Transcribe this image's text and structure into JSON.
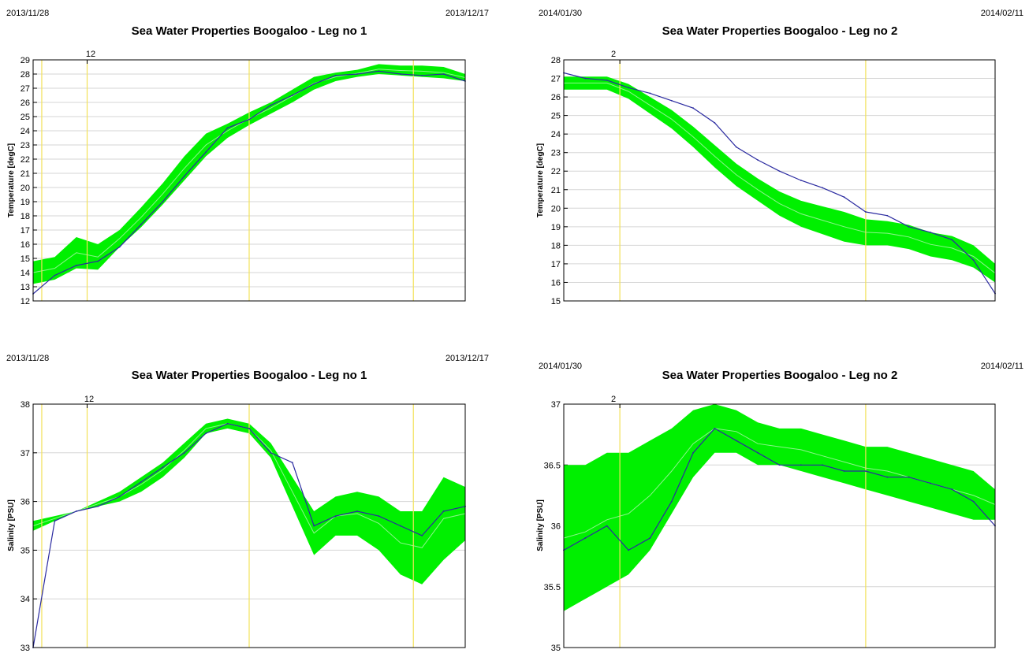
{
  "colors": {
    "band": "#00f000",
    "band_mid": "#8cf58c",
    "line": "#2a2aa0",
    "marker": "#f2e25a",
    "grid": "#d6d6d6",
    "axis": "#000000"
  },
  "chart_data": [
    {
      "type": "area",
      "title": "Sea Water Properties Boogaloo - Leg no 1",
      "ylabel": "Temperature [degC]",
      "date_start": "2013/11/28",
      "date_end": "2013/12/17",
      "top_tick_label": "12",
      "ylim": [
        12,
        29
      ],
      "yticks": [
        12,
        13,
        14,
        15,
        16,
        17,
        18,
        19,
        20,
        21,
        22,
        23,
        24,
        25,
        26,
        27,
        28,
        29
      ],
      "x": [
        0.0,
        0.05,
        0.1,
        0.15,
        0.2,
        0.25,
        0.3,
        0.35,
        0.4,
        0.45,
        0.5,
        0.55,
        0.6,
        0.65,
        0.7,
        0.75,
        0.8,
        0.85,
        0.9,
        0.95,
        1.0
      ],
      "series": [
        {
          "values": [
            12.5,
            13.8,
            14.5,
            14.8,
            15.8,
            17.4,
            19.0,
            20.8,
            22.5,
            24.2,
            24.8,
            25.8,
            26.5,
            27.3,
            27.9,
            28.0,
            28.2,
            28.0,
            27.9,
            28.0,
            27.5
          ]
        }
      ],
      "band": {
        "lower": [
          13.2,
          13.5,
          14.3,
          14.2,
          15.8,
          17.2,
          18.8,
          20.5,
          22.2,
          23.5,
          24.4,
          25.2,
          26.0,
          26.9,
          27.5,
          27.8,
          28.0,
          27.9,
          27.8,
          27.7,
          27.5
        ],
        "upper": [
          14.8,
          15.1,
          16.5,
          16.0,
          17.0,
          18.6,
          20.3,
          22.2,
          23.8,
          24.5,
          25.3,
          26.0,
          26.9,
          27.8,
          28.1,
          28.3,
          28.7,
          28.6,
          28.6,
          28.5,
          28.0
        ]
      },
      "markers": [
        0.02,
        0.125,
        0.5,
        0.88
      ]
    },
    {
      "type": "area",
      "title": "Sea Water Properties Boogaloo - Leg no 2",
      "ylabel": "Temperature [degC]",
      "date_start": "2014/01/30",
      "date_end": "2014/02/11",
      "top_tick_label": "2",
      "ylim": [
        15,
        28
      ],
      "yticks": [
        15,
        16,
        17,
        18,
        19,
        20,
        21,
        22,
        23,
        24,
        25,
        26,
        27,
        28
      ],
      "x": [
        0.0,
        0.05,
        0.1,
        0.15,
        0.2,
        0.25,
        0.3,
        0.35,
        0.4,
        0.45,
        0.5,
        0.55,
        0.6,
        0.65,
        0.7,
        0.75,
        0.8,
        0.85,
        0.9,
        0.95,
        1.0
      ],
      "series": [
        {
          "values": [
            27.3,
            27.0,
            26.9,
            26.5,
            26.2,
            25.8,
            25.4,
            24.6,
            23.3,
            22.6,
            22.0,
            21.5,
            21.1,
            20.6,
            19.8,
            19.6,
            19.0,
            18.7,
            18.3,
            17.2,
            15.4
          ]
        }
      ],
      "band": {
        "lower": [
          26.4,
          26.4,
          26.4,
          25.9,
          25.1,
          24.3,
          23.3,
          22.2,
          21.2,
          20.4,
          19.6,
          19.0,
          18.6,
          18.2,
          18.0,
          18.0,
          17.8,
          17.4,
          17.2,
          16.8,
          16.0
        ]
      },
      "band_upper": [
        27.1,
        27.1,
        27.1,
        26.7,
        26.0,
        25.3,
        24.4,
        23.4,
        22.4,
        21.6,
        20.9,
        20.4,
        20.1,
        19.8,
        19.4,
        19.3,
        19.1,
        18.7,
        18.5,
        18.0,
        17.0
      ],
      "markers": [
        0.13,
        0.7
      ]
    },
    {
      "type": "area",
      "title": "Sea Water Properties Boogaloo - Leg no 1",
      "ylabel": "Salinity [PSU]",
      "date_start": "2013/11/28",
      "date_end": "2013/12/17",
      "top_tick_label": "12",
      "ylim": [
        33,
        38
      ],
      "yticks": [
        33,
        34,
        35,
        36,
        37,
        38
      ],
      "x": [
        0.0,
        0.05,
        0.1,
        0.15,
        0.2,
        0.25,
        0.3,
        0.35,
        0.4,
        0.45,
        0.5,
        0.55,
        0.6,
        0.65,
        0.7,
        0.75,
        0.8,
        0.85,
        0.9,
        0.95,
        1.0
      ],
      "series": [
        {
          "values": [
            33.0,
            35.6,
            35.8,
            35.9,
            36.1,
            36.4,
            36.7,
            37.0,
            37.4,
            37.6,
            37.5,
            37.0,
            36.8,
            35.5,
            35.7,
            35.8,
            35.7,
            35.5,
            35.3,
            35.8,
            35.9
          ]
        }
      ],
      "band": {
        "lower": [
          35.4,
          35.6,
          35.8,
          35.9,
          36.0,
          36.2,
          36.5,
          36.9,
          37.4,
          37.5,
          37.4,
          36.9,
          35.9,
          34.9,
          35.3,
          35.3,
          35.0,
          34.5,
          34.3,
          34.8,
          35.2
        ]
      },
      "band_upper": [
        35.6,
        35.7,
        35.8,
        36.0,
        36.2,
        36.5,
        36.8,
        37.2,
        37.6,
        37.7,
        37.6,
        37.2,
        36.5,
        35.8,
        36.1,
        36.2,
        36.1,
        35.8,
        35.8,
        36.5,
        36.3
      ],
      "markers": [
        0.02,
        0.125,
        0.5,
        0.88
      ]
    },
    {
      "type": "area",
      "title": "Sea Water Properties Boogaloo - Leg no 2",
      "ylabel": "Salinity [PSU]",
      "date_start": "2014/01/30",
      "date_end": "2014/02/11",
      "top_tick_label": "2",
      "ylim": [
        35,
        37
      ],
      "yticks": [
        35,
        35.5,
        36,
        36.5,
        37
      ],
      "x": [
        0.0,
        0.05,
        0.1,
        0.15,
        0.2,
        0.25,
        0.3,
        0.35,
        0.4,
        0.45,
        0.5,
        0.55,
        0.6,
        0.65,
        0.7,
        0.75,
        0.8,
        0.85,
        0.9,
        0.95,
        1.0
      ],
      "series": [
        {
          "values": [
            35.8,
            35.9,
            36.0,
            35.8,
            35.9,
            36.2,
            36.6,
            36.8,
            36.7,
            36.6,
            36.5,
            36.5,
            36.5,
            36.45,
            36.45,
            36.4,
            36.4,
            36.35,
            36.3,
            36.2,
            36.0
          ]
        }
      ],
      "band": {
        "lower": [
          35.3,
          35.4,
          35.5,
          35.6,
          35.8,
          36.1,
          36.4,
          36.6,
          36.6,
          36.5,
          36.5,
          36.45,
          36.4,
          36.35,
          36.3,
          36.25,
          36.2,
          36.15,
          36.1,
          36.05,
          36.05
        ]
      },
      "band_upper": [
        36.5,
        36.5,
        36.6,
        36.6,
        36.7,
        36.8,
        36.95,
        37.0,
        36.95,
        36.85,
        36.8,
        36.8,
        36.75,
        36.7,
        36.65,
        36.65,
        36.6,
        36.55,
        36.5,
        36.45,
        36.3
      ],
      "markers": [
        0.13,
        0.7
      ]
    }
  ]
}
